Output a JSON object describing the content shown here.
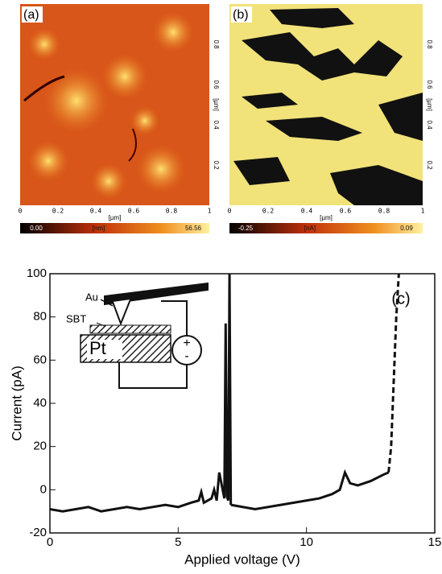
{
  "panels": [
    {
      "label": "(a)",
      "x_ticks": [
        "0",
        "0.2",
        "0.4",
        "0.6",
        "0.8",
        "1"
      ],
      "y_ticks": [
        "0.2",
        "0.4",
        "0.6",
        "0.8"
      ],
      "unit": "[µm]",
      "scale": [
        "0.00",
        "[nm]",
        "56.56"
      ]
    },
    {
      "label": "(b)",
      "x_ticks": [
        "0",
        "0.2",
        "0.4",
        "0.6",
        "0.8",
        "1"
      ],
      "y_ticks": [
        "0.2",
        "0.4",
        "0.6",
        "0.8"
      ],
      "unit": "[µm]",
      "scale": [
        "-0.25",
        "[nA]",
        "0.09"
      ]
    }
  ],
  "chart_data": {
    "type": "line",
    "xlabel": "Applied voltage (V)",
    "ylabel": "Current (pA)",
    "annotation": "(c)",
    "inset_labels": {
      "tip": "Au",
      "film": "SBT",
      "electrode": "Pt",
      "plus": "+",
      "minus": "-"
    },
    "xlim": [
      0,
      15
    ],
    "ylim": [
      -20,
      100
    ],
    "xticks": [
      0,
      5,
      10,
      15
    ],
    "yticks": [
      -20,
      0,
      20,
      40,
      60,
      80,
      100
    ],
    "series": [
      {
        "color": "#111111",
        "dashed": false,
        "x": [
          0,
          0.5,
          1,
          1.5,
          2,
          2.5,
          3,
          3.5,
          4,
          4.5,
          5,
          5.5,
          5.8,
          5.9,
          6,
          6.3,
          6.4,
          6.5,
          6.6,
          6.8,
          6.85,
          6.9,
          6.95,
          7.0,
          7.05
        ],
        "values": [
          -9,
          -10,
          -9,
          -8,
          -10,
          -9,
          -8,
          -9,
          -8,
          -7,
          -8,
          -6,
          -5,
          -1,
          -6,
          -4,
          0,
          -5,
          8,
          -4,
          77,
          -3,
          -5,
          100,
          -7
        ]
      },
      {
        "color": "#111111",
        "dashed": false,
        "x": [
          7.05,
          8,
          9,
          10,
          10.5,
          11,
          11.3,
          11.5,
          11.7,
          12,
          12.5,
          13,
          13.2
        ],
        "values": [
          -7,
          -9,
          -7,
          -5,
          -4,
          -2,
          0,
          8,
          3,
          2,
          4,
          7,
          8
        ]
      },
      {
        "color": "#111111",
        "dashed": true,
        "x": [
          13.2,
          13.3,
          13.4,
          13.5,
          13.6
        ],
        "values": [
          8,
          20,
          50,
          80,
          100
        ]
      }
    ]
  }
}
